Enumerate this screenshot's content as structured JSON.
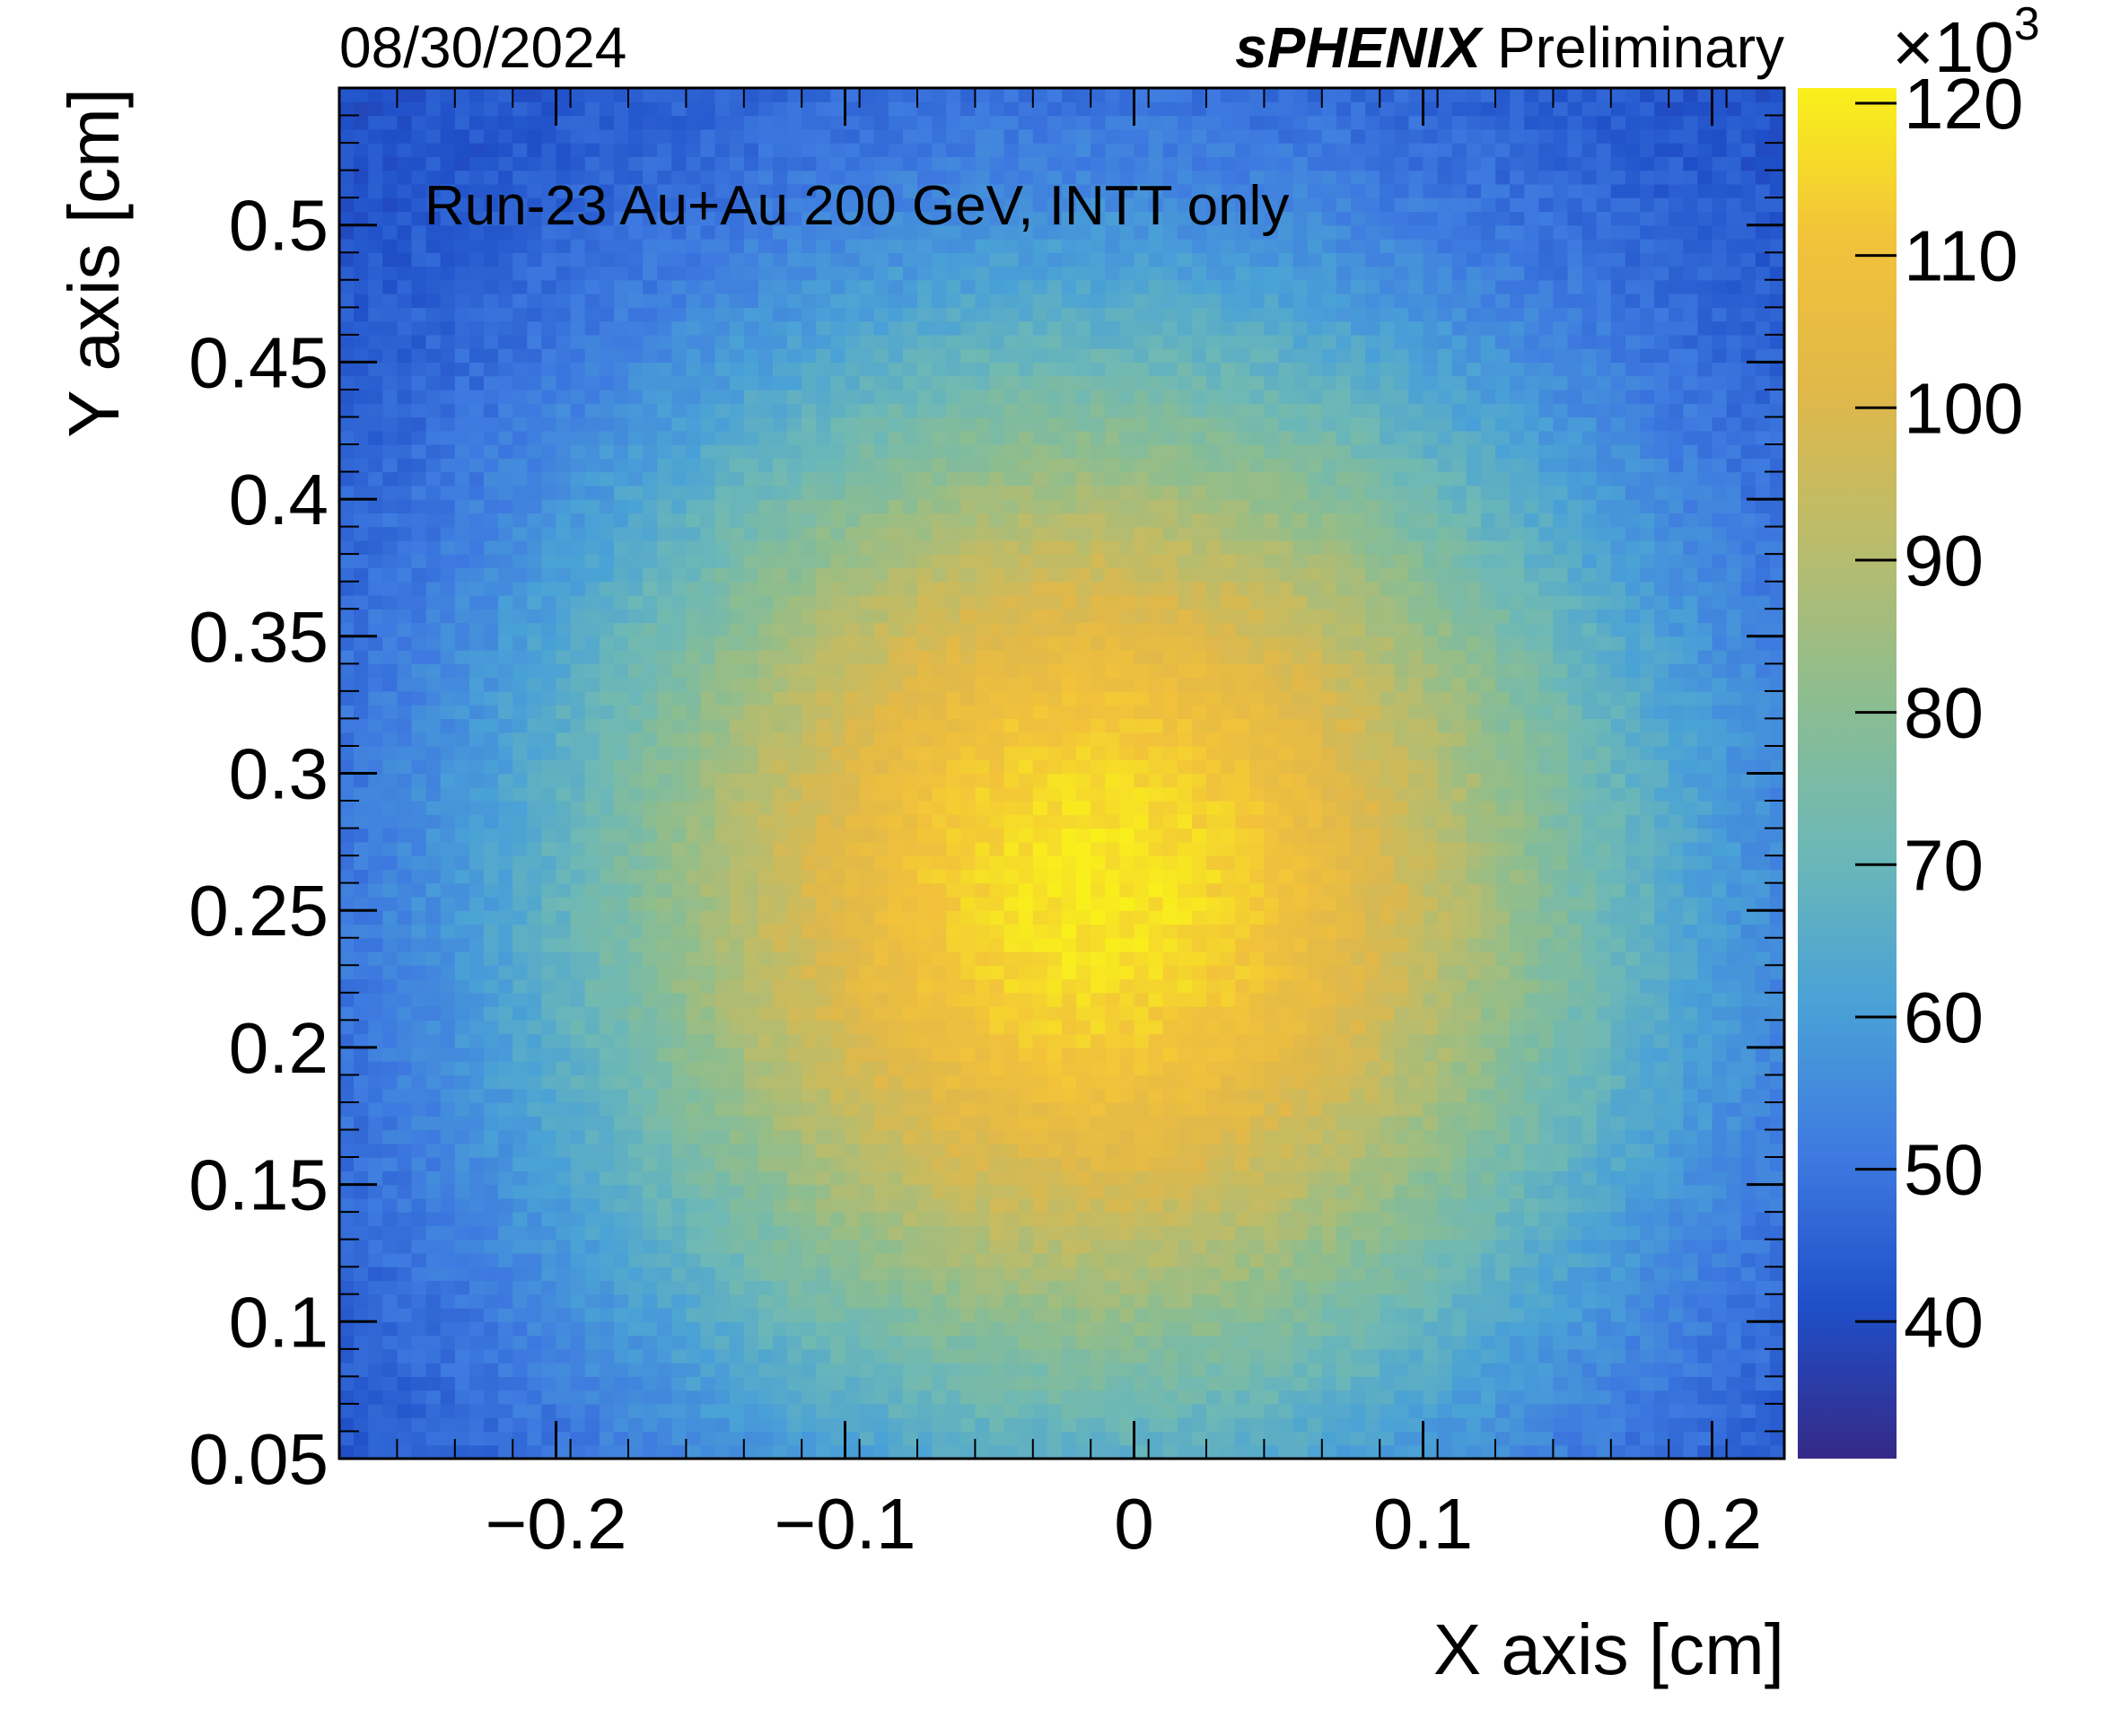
{
  "header": {
    "date": "08/30/2024",
    "experiment": "sPHENIX",
    "status": "Preliminary"
  },
  "chart_data": {
    "type": "heatmap",
    "title": "",
    "annotation": "Run-23 Au+Au 200 GeV, INTT only",
    "xlabel": "X axis [cm]",
    "ylabel": "Y axis [cm]",
    "xlim": [
      -0.275,
      0.225
    ],
    "ylim": [
      0.05,
      0.55
    ],
    "xticks": [
      -0.2,
      -0.1,
      0,
      0.1,
      0.2
    ],
    "xtick_labels": [
      "−0.2",
      "−0.1",
      "0",
      "0.1",
      "0.2"
    ],
    "yticks": [
      0.05,
      0.1,
      0.15,
      0.2,
      0.25,
      0.3,
      0.35,
      0.4,
      0.45,
      0.5
    ],
    "ytick_labels": [
      "0.05",
      "0.1",
      "0.15",
      "0.2",
      "0.25",
      "0.3",
      "0.35",
      "0.4",
      "0.45",
      "0.5"
    ],
    "bins_x": 100,
    "bins_y": 100,
    "peak": {
      "x": -0.013,
      "y": 0.258,
      "value": 119
    },
    "edge_corner_value": 40,
    "colorbar": {
      "range": [
        31,
        121
      ],
      "ticks": [
        40,
        50,
        60,
        70,
        80,
        90,
        100,
        110,
        120
      ],
      "tick_labels": [
        "40",
        "50",
        "60",
        "70",
        "80",
        "90",
        "100",
        "110",
        "120"
      ],
      "multiplier_prefix": "×10",
      "multiplier_exponent": "3",
      "palette": [
        "#352a87",
        "#1f4fc8",
        "#3e7ae0",
        "#4aa2d6",
        "#6db8b6",
        "#8dbd8f",
        "#b9bc6c",
        "#e0b84a",
        "#f2c23a",
        "#f9f01b"
      ]
    }
  }
}
